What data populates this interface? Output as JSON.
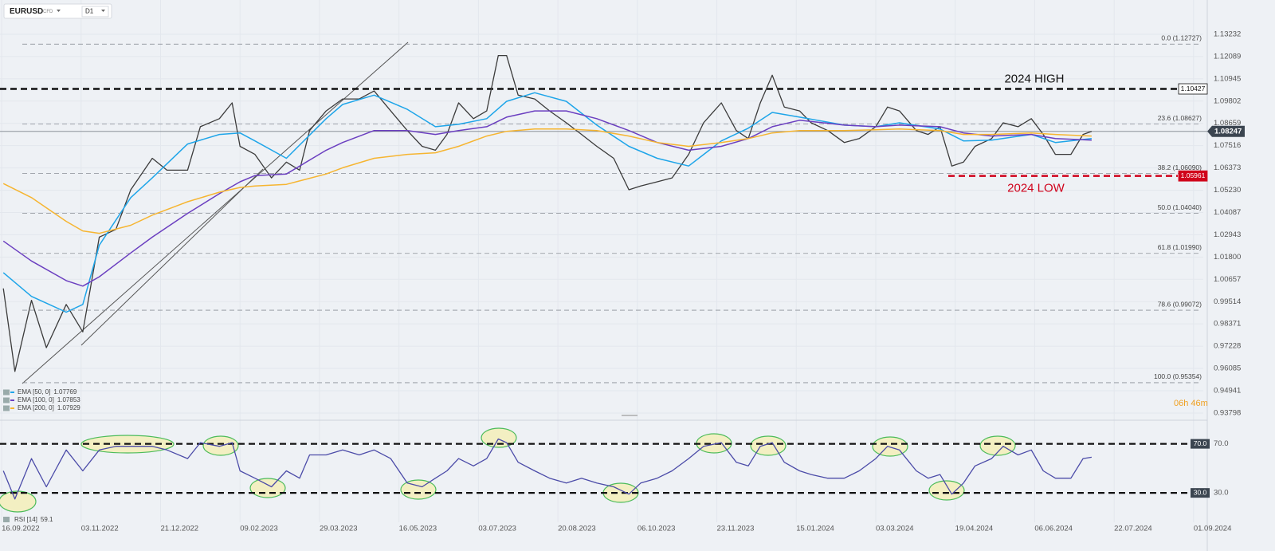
{
  "chart_data": [
    {
      "type": "line",
      "symbol": "EURUSD",
      "instrument": "CFD",
      "interval": "D1",
      "xlim": [
        "15.09.2022",
        "06.09.2024"
      ],
      "xticks": [
        "16.09.2022",
        "03.11.2022",
        "21.12.2022",
        "09.02.2023",
        "29.03.2023",
        "16.05.2023",
        "03.07.2023",
        "20.08.2023",
        "06.10.2023",
        "23.11.2023",
        "15.01.2024",
        "03.03.2024",
        "19.04.2024",
        "06.06.2024",
        "22.07.2024",
        "01.09.2024"
      ],
      "ylim": [
        0.9351,
        1.1458
      ],
      "yticks": [
        1.13232,
        1.12089,
        1.10945,
        1.09802,
        1.08659,
        1.07516,
        1.06373,
        {
          "value": 1.0523,
          "label": "1.05230"
        },
        1.04087,
        1.02943,
        {
          "value": 1.018,
          "label": "1.01800"
        },
        1.00657,
        0.99514,
        0.98371,
        0.97228,
        0.96085,
        0.94941,
        0.93798
      ],
      "grid": true,
      "x": [
        "17.09.2022",
        "24.09.2022",
        "04.10.2022",
        "13.10.2022",
        "25.10.2022",
        "04.11.2022",
        "14.11.2022",
        "24.11.2022",
        "03.12.2022",
        "16.12.2022",
        "25.12.2022",
        "07.01.2023",
        "15.01.2023",
        "27.01.2023",
        "04.02.2023",
        "09.02.2023",
        "18.02.2023",
        "28.02.2023",
        "09.03.2023",
        "17.03.2023",
        "23.03.2023",
        "02.04.2023",
        "12.04.2023",
        "22.04.2023",
        "01.05.2023",
        "11.05.2023",
        "21.05.2023",
        "30.05.2023",
        "07.06.2023",
        "14.06.2023",
        "21.06.2023",
        "30.06.2023",
        "08.07.2023",
        "15.07.2023",
        "20.07.2023",
        "27.07.2023",
        "06.08.2023",
        "15.08.2023",
        "25.08.2023",
        "03.09.2023",
        "12.09.2023",
        "22.09.2023",
        "01.10.2023",
        "08.10.2023",
        "18.10.2023",
        "27.10.2023",
        "06.11.2023",
        "15.11.2023",
        "26.11.2023",
        "06.12.2023",
        "14.12.2023",
        "22.12.2023",
        "30.12.2023",
        "07.01.2024",
        "17.01.2024",
        "24.01.2024",
        "03.02.2024",
        "13.02.2024",
        "22.02.2024",
        "03.03.2024",
        "10.03.2024",
        "17.03.2024",
        "27.03.2024",
        "03.04.2024",
        "10.04.2024",
        "17.04.2024",
        "24.04.2024",
        "01.05.2024",
        "11.05.2024",
        "18.05.2024",
        "27.05.2024",
        "04.06.2024",
        "11.06.2024",
        "18.06.2024",
        "27.06.2024",
        "04.07.2024",
        "09.07.2024"
      ],
      "series": [
        {
          "color": "#3b3b3b",
          "values": [
            1.0019,
            0.9593,
            0.9958,
            0.9715,
            0.9937,
            0.9796,
            1.0282,
            1.0322,
            1.0525,
            1.0687,
            1.0626,
            1.0626,
            1.0849,
            1.089,
            1.0971,
            1.0748,
            1.0707,
            1.0586,
            1.0667,
            1.0626,
            1.0829,
            1.093,
            1.0991,
            1.0991,
            1.1032,
            1.093,
            1.0829,
            1.0748,
            1.0728,
            1.0809,
            1.0971,
            1.089,
            1.093,
            1.1214,
            1.1214,
            1.1011,
            1.0991,
            1.093,
            1.0869,
            1.0809,
            1.0748,
            1.0687,
            1.0525,
            1.0545,
            1.0566,
            1.0586,
            1.0707,
            1.0869,
            1.0971,
            1.0829,
            1.0788,
            1.0971,
            1.1113,
            1.095,
            1.093,
            1.0869,
            1.0829,
            1.0768,
            1.0788,
            1.0849,
            1.095,
            1.093,
            1.0829,
            1.0809,
            1.0849,
            1.0647,
            1.0667,
            1.0748,
            1.0788,
            1.0869,
            1.0849,
            1.089,
            1.0809,
            1.0707,
            1.0707,
            1.0809,
            1.08247
          ]
        },
        {
          "name": "EMA [50, 0]",
          "last": 1.07769,
          "color": "#1ea5e9",
          "x": [
            "17.09.2022",
            "04.10.2022",
            "25.10.2022",
            "04.11.2022",
            "14.11.2022",
            "03.12.2022",
            "16.12.2022",
            "07.01.2023",
            "27.01.2023",
            "09.02.2023",
            "18.02.2023",
            "09.03.2023",
            "02.04.2023",
            "12.04.2023",
            "01.05.2023",
            "21.05.2023",
            "07.06.2023",
            "21.06.2023",
            "08.07.2023",
            "20.07.2023",
            "06.08.2023",
            "25.08.2023",
            "12.09.2023",
            "01.10.2023",
            "18.10.2023",
            "06.11.2023",
            "26.11.2023",
            "14.12.2023",
            "30.12.2023",
            "17.01.2024",
            "13.02.2024",
            "03.03.2024",
            "17.03.2024",
            "10.04.2024",
            "24.04.2024",
            "11.05.2024",
            "04.06.2024",
            "18.06.2024",
            "09.07.2024"
          ],
          "values": [
            1.01,
            0.9978,
            0.9897,
            0.9937,
            1.0241,
            1.0485,
            1.0586,
            1.076,
            1.0809,
            1.0817,
            1.0776,
            1.0687,
            1.089,
            1.0963,
            1.1011,
            1.0938,
            1.0849,
            1.0861,
            1.089,
            1.0979,
            1.1023,
            1.0979,
            1.0857,
            1.0748,
            1.0687,
            1.0647,
            1.0776,
            1.0841,
            1.0922,
            1.0898,
            1.0857,
            1.0849,
            1.0869,
            1.0837,
            1.0776,
            1.078,
            1.0809,
            1.0768,
            1.0788
          ]
        },
        {
          "name": "EMA [100, 0]",
          "last": 1.07853,
          "color": "#6b3fc0",
          "x": [
            "17.09.2022",
            "04.10.2022",
            "25.10.2022",
            "04.11.2022",
            "14.11.2022",
            "03.12.2022",
            "16.12.2022",
            "07.01.2023",
            "27.01.2023",
            "09.02.2023",
            "18.02.2023",
            "09.03.2023",
            "02.04.2023",
            "12.04.2023",
            "01.05.2023",
            "21.05.2023",
            "07.06.2023",
            "21.06.2023",
            "08.07.2023",
            "20.07.2023",
            "06.08.2023",
            "25.08.2023",
            "12.09.2023",
            "01.10.2023",
            "18.10.2023",
            "06.11.2023",
            "26.11.2023",
            "14.12.2023",
            "30.12.2023",
            "17.01.2024",
            "13.02.2024",
            "03.03.2024",
            "17.03.2024",
            "10.04.2024",
            "24.04.2024",
            "11.05.2024",
            "04.06.2024",
            "18.06.2024",
            "09.07.2024"
          ],
          "values": [
            1.0262,
            1.016,
            1.0059,
            1.0031,
            1.0079,
            1.0201,
            1.0282,
            1.0404,
            1.0505,
            1.0566,
            1.0598,
            1.0606,
            1.0728,
            1.0768,
            1.0829,
            1.0829,
            1.0809,
            1.0829,
            1.0849,
            1.0898,
            1.093,
            1.093,
            1.089,
            1.0829,
            1.0768,
            1.0728,
            1.0748,
            1.0788,
            1.0849,
            1.0882,
            1.0857,
            1.0849,
            1.0857,
            1.0849,
            1.0817,
            1.0801,
            1.0809,
            1.0788,
            1.078
          ]
        },
        {
          "name": "EMA [200, 0]",
          "last": 1.07929,
          "color": "#f6b531",
          "x": [
            "17.09.2022",
            "04.10.2022",
            "25.10.2022",
            "04.11.2022",
            "14.11.2022",
            "03.12.2022",
            "16.12.2022",
            "07.01.2023",
            "27.01.2023",
            "09.02.2023",
            "18.02.2023",
            "09.03.2023",
            "02.04.2023",
            "12.04.2023",
            "01.05.2023",
            "21.05.2023",
            "07.06.2023",
            "21.06.2023",
            "08.07.2023",
            "20.07.2023",
            "06.08.2023",
            "25.08.2023",
            "12.09.2023",
            "01.10.2023",
            "18.10.2023",
            "06.11.2023",
            "26.11.2023",
            "14.12.2023",
            "30.12.2023",
            "17.01.2024",
            "13.02.2024",
            "03.03.2024",
            "17.03.2024",
            "10.04.2024",
            "24.04.2024",
            "11.05.2024",
            "04.06.2024",
            "18.06.2024",
            "09.07.2024"
          ],
          "values": [
            1.0557,
            1.0485,
            1.0363,
            1.0314,
            1.0302,
            1.0343,
            1.0395,
            1.0464,
            1.0513,
            1.0537,
            1.0545,
            1.0553,
            1.0606,
            1.0638,
            1.0687,
            1.0707,
            1.0715,
            1.0748,
            1.0801,
            1.0825,
            1.0837,
            1.0837,
            1.0829,
            1.0801,
            1.0768,
            1.0748,
            1.0768,
            1.0788,
            1.0817,
            1.0829,
            1.0829,
            1.0833,
            1.0837,
            1.0829,
            1.0809,
            1.0809,
            1.0817,
            1.0809,
            1.0801
          ]
        }
      ],
      "fib_levels": [
        {
          "label": "0.0 (1.12727)",
          "value": 1.12727
        },
        {
          "label": "23.6 (1.08627)",
          "value": 1.08627
        },
        {
          "label": "38.2 (1.06090)",
          "value": 1.0609
        },
        {
          "label": "50.0 (1.04040)",
          "value": 1.0404
        },
        {
          "label": "61.8 (1.01990)",
          "value": 1.0199
        },
        {
          "label": "78.6 (0.99072)",
          "value": 0.99072
        },
        {
          "label": "100.0 (0.95354)",
          "value": 0.95354
        }
      ],
      "hlines": [
        {
          "label": "2024 HIGH",
          "value": 1.10427,
          "color": "#111111"
        },
        {
          "label": "2024 LOW",
          "value": 1.05961,
          "color": "#d0021b"
        }
      ],
      "current_price": 1.08247,
      "timer": "06h 46m"
    },
    {
      "type": "line",
      "indicator": "RSI [14]",
      "indicator_value": 59.1,
      "ylim": [
        8,
        86
      ],
      "yticks": [
        {
          "value": 70,
          "label": "70.0"
        },
        {
          "value": 30,
          "label": "30.0"
        }
      ],
      "x": [
        "17.09.2022",
        "24.09.2022",
        "04.10.2022",
        "13.10.2022",
        "25.10.2022",
        "04.11.2022",
        "14.11.2022",
        "24.11.2022",
        "03.12.2022",
        "16.12.2022",
        "25.12.2022",
        "07.01.2023",
        "15.01.2023",
        "27.01.2023",
        "04.02.2023",
        "09.02.2023",
        "18.02.2023",
        "28.02.2023",
        "09.03.2023",
        "17.03.2023",
        "23.03.2023",
        "02.04.2023",
        "12.04.2023",
        "22.04.2023",
        "01.05.2023",
        "11.05.2023",
        "21.05.2023",
        "30.05.2023",
        "07.06.2023",
        "14.06.2023",
        "21.06.2023",
        "30.06.2023",
        "08.07.2023",
        "15.07.2023",
        "20.07.2023",
        "27.07.2023",
        "06.08.2023",
        "15.08.2023",
        "25.08.2023",
        "03.09.2023",
        "12.09.2023",
        "22.09.2023",
        "01.10.2023",
        "08.10.2023",
        "18.10.2023",
        "27.10.2023",
        "06.11.2023",
        "15.11.2023",
        "26.11.2023",
        "06.12.2023",
        "14.12.2023",
        "22.12.2023",
        "30.12.2023",
        "07.01.2024",
        "17.01.2024",
        "24.01.2024",
        "03.02.2024",
        "13.02.2024",
        "22.02.2024",
        "03.03.2024",
        "10.03.2024",
        "17.03.2024",
        "27.03.2024",
        "03.04.2024",
        "10.04.2024",
        "17.04.2024",
        "24.04.2024",
        "01.05.2024",
        "11.05.2024",
        "18.05.2024",
        "27.05.2024",
        "04.06.2024",
        "11.06.2024",
        "18.06.2024",
        "27.06.2024",
        "04.07.2024",
        "09.07.2024"
      ],
      "series": [
        {
          "color": "#4b4ba8",
          "values": [
            48,
            25,
            58,
            35,
            65,
            48,
            65,
            68,
            68,
            68,
            65,
            58,
            71,
            68,
            71,
            48,
            42,
            35,
            48,
            42,
            61,
            61,
            65,
            61,
            65,
            58,
            38,
            35,
            42,
            48,
            58,
            52,
            58,
            74,
            71,
            55,
            48,
            42,
            38,
            42,
            38,
            35,
            29,
            38,
            42,
            48,
            58,
            68,
            71,
            55,
            52,
            68,
            71,
            55,
            48,
            45,
            42,
            42,
            48,
            58,
            68,
            65,
            48,
            42,
            45,
            29,
            38,
            52,
            58,
            68,
            61,
            65,
            48,
            42,
            42,
            58,
            59.1
          ]
        }
      ]
    }
  ]
}
